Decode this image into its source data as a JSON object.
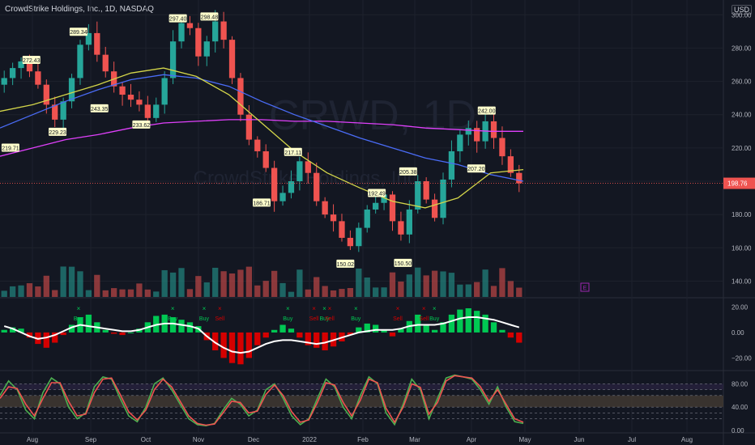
{
  "header": {
    "title": "CrowdStrike Holdings, Inc., 1D, NASDAQ",
    "currency": "USD"
  },
  "watermark": {
    "ticker": "CRWD, 1D",
    "name": "CrowdStrike Holdings, Inc."
  },
  "colors": {
    "up": "#26a69a",
    "down": "#ef5350",
    "bg": "#131722",
    "grid": "#1e222d",
    "ma_pink": "#e040fb",
    "ma_blue": "#4a6cf7",
    "ma_yellow": "#d4d64a",
    "ma_green": "#4caf50",
    "ma_red": "#ef5350",
    "macd_up": "#00c853",
    "macd_down": "#d50000",
    "signal": "#ffffff",
    "stoch_k": "#4caf50",
    "stoch_d": "#ef5350"
  },
  "chart_data": [
    {
      "type": "candlestick",
      "title": "CrowdStrike Holdings, Inc., 1D, NASDAQ",
      "ylim": [
        130,
        305
      ],
      "x_ticks": [
        "Aug",
        "Sep",
        "Oct",
        "Nov",
        "Dec",
        "2022",
        "Feb",
        "Mar",
        "Apr",
        "May",
        "Jun",
        "Jul",
        "Aug"
      ],
      "y_ticks": [
        140,
        160,
        180,
        200,
        220,
        240,
        260,
        280,
        300
      ],
      "y_tick_labels": [
        "140.00",
        "160.00",
        "180.00",
        "200.00",
        "220.00",
        "240.00",
        "260.00",
        "280.00",
        "300.00"
      ],
      "last_price": 198.76,
      "last_price_label": "198.76",
      "price_closes": [
        262,
        268,
        272,
        266,
        258,
        246,
        237,
        248,
        262,
        282,
        289,
        276,
        266,
        257,
        252,
        249,
        246,
        238,
        246,
        262,
        284,
        295,
        292,
        275,
        284,
        296,
        285,
        262,
        240,
        225,
        218,
        208,
        188,
        193,
        200,
        212,
        205,
        188,
        180,
        176,
        166,
        161,
        172,
        183,
        187,
        192,
        176,
        168,
        183,
        200,
        189,
        178,
        201,
        218,
        228,
        232,
        224,
        236,
        226,
        215,
        205,
        198.76
      ],
      "pivot_labels": [
        {
          "x": 0.02,
          "value": 219.71,
          "label": "219.71"
        },
        {
          "x": 0.06,
          "value": 272.43,
          "label": "272.43"
        },
        {
          "x": 0.11,
          "value": 229.23,
          "label": "229.23"
        },
        {
          "x": 0.15,
          "value": 289.34,
          "label": "289.34"
        },
        {
          "x": 0.19,
          "value": 243.35,
          "label": "243.35"
        },
        {
          "x": 0.27,
          "value": 233.62,
          "label": "233.62"
        },
        {
          "x": 0.34,
          "value": 297.4,
          "label": "297.40"
        },
        {
          "x": 0.4,
          "value": 298.48,
          "label": "298.48"
        },
        {
          "x": 0.5,
          "value": 186.71,
          "label": "186.71"
        },
        {
          "x": 0.56,
          "value": 217.11,
          "label": "217.11"
        },
        {
          "x": 0.66,
          "value": 150.02,
          "label": "150.02"
        },
        {
          "x": 0.72,
          "value": 192.49,
          "label": "192.49"
        },
        {
          "x": 0.77,
          "value": 150.5,
          "label": "150.50"
        },
        {
          "x": 0.78,
          "value": 205.38,
          "label": "205.38"
        },
        {
          "x": 0.91,
          "value": 207.2,
          "label": "207.20"
        },
        {
          "x": 0.93,
          "value": 242.0,
          "label": "242.00"
        }
      ],
      "moving_averages": [
        {
          "color": "#e040fb",
          "values": [
            215,
            220,
            225,
            228,
            232,
            235,
            236,
            237,
            237,
            236,
            236,
            235,
            234,
            232,
            231,
            230,
            230
          ]
        },
        {
          "color": "#4a6cf7",
          "values": [
            232,
            240,
            248,
            255,
            261,
            264,
            262,
            257,
            248,
            240,
            233,
            226,
            220,
            214,
            210,
            204,
            200
          ]
        },
        {
          "color": "#d4d64a",
          "values": [
            242,
            246,
            252,
            258,
            265,
            268,
            263,
            252,
            235,
            218,
            205,
            196,
            188,
            184,
            190,
            205,
            207
          ]
        }
      ],
      "event_marker": "E"
    },
    {
      "type": "histogram",
      "name": "MACD",
      "y_ticks": [
        20,
        0,
        -20
      ],
      "y_tick_labels": [
        "20.00",
        "0.00",
        "−20.00"
      ],
      "ylim": [
        -28,
        26
      ],
      "histogram": [
        2,
        4,
        3,
        -4,
        -9,
        -12,
        -8,
        -2,
        6,
        12,
        14,
        8,
        2,
        -1,
        -2,
        0,
        3,
        8,
        13,
        14,
        12,
        10,
        8,
        5,
        -6,
        -14,
        -20,
        -24,
        -25,
        -20,
        -10,
        -4,
        2,
        6,
        3,
        -4,
        -10,
        -12,
        -14,
        -11,
        -7,
        -2,
        4,
        7,
        6,
        2,
        -3,
        3,
        9,
        14,
        6,
        2,
        8,
        14,
        18,
        19,
        17,
        14,
        8,
        2,
        -4,
        -8
      ],
      "signal_line": [
        5,
        3,
        0,
        -3,
        -5,
        -4,
        -2,
        1,
        4,
        6,
        5,
        4,
        3,
        2,
        1,
        1,
        2,
        4,
        6,
        7,
        7,
        6,
        5,
        3,
        -3,
        -8,
        -12,
        -15,
        -16,
        -15,
        -12,
        -9,
        -7,
        -6,
        -6,
        -7,
        -8,
        -9,
        -8,
        -6,
        -4,
        -2,
        0,
        1,
        2,
        2,
        2,
        3,
        5,
        6,
        6,
        6,
        7,
        9,
        11,
        12,
        12,
        11,
        10,
        8,
        6,
        4
      ],
      "signals": [
        {
          "x": 0.15,
          "label": "Buy"
        },
        {
          "x": 0.33,
          "label": "Buy"
        },
        {
          "x": 0.39,
          "label": "Buy"
        },
        {
          "x": 0.42,
          "label": "Sell"
        },
        {
          "x": 0.55,
          "label": "Buy"
        },
        {
          "x": 0.6,
          "label": "Sell"
        },
        {
          "x": 0.62,
          "label": "Buy"
        },
        {
          "x": 0.63,
          "label": "Sell"
        },
        {
          "x": 0.68,
          "label": "Buy"
        },
        {
          "x": 0.76,
          "label": "Sell"
        },
        {
          "x": 0.81,
          "label": "Sell"
        },
        {
          "x": 0.83,
          "label": "Buy"
        }
      ]
    },
    {
      "type": "line",
      "name": "Stochastic",
      "y_ticks": [
        80,
        40,
        0
      ],
      "y_tick_labels": [
        "80.00",
        "40.00",
        "0.00"
      ],
      "ylim": [
        0,
        100
      ],
      "series": [
        {
          "color": "#4caf50",
          "values": [
            60,
            85,
            70,
            35,
            20,
            65,
            90,
            80,
            40,
            20,
            30,
            75,
            92,
            88,
            55,
            25,
            15,
            40,
            80,
            90,
            70,
            45,
            20,
            10,
            8,
            12,
            35,
            55,
            45,
            25,
            35,
            70,
            80,
            55,
            25,
            10,
            20,
            55,
            88,
            75,
            40,
            20,
            60,
            92,
            80,
            30,
            10,
            45,
            88,
            70,
            20,
            55,
            90,
            95,
            92,
            88,
            70,
            45,
            75,
            40,
            15,
            12
          ]
        },
        {
          "color": "#ef5350",
          "values": [
            55,
            75,
            72,
            45,
            25,
            55,
            82,
            82,
            50,
            25,
            28,
            65,
            88,
            90,
            62,
            32,
            18,
            35,
            70,
            88,
            75,
            50,
            25,
            12,
            9,
            11,
            30,
            50,
            48,
            30,
            33,
            62,
            78,
            60,
            32,
            14,
            18,
            48,
            82,
            78,
            48,
            25,
            52,
            88,
            82,
            38,
            14,
            40,
            80,
            74,
            28,
            48,
            85,
            94,
            92,
            90,
            75,
            50,
            70,
            45,
            20,
            14
          ]
        }
      ]
    }
  ]
}
